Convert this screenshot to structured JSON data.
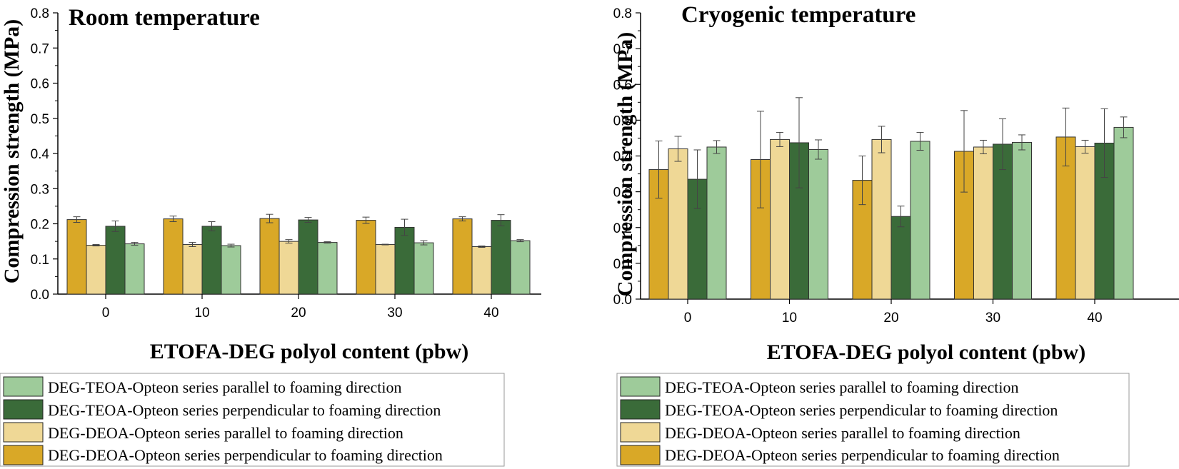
{
  "series_colors": {
    "deoa_perp": "#D9A827",
    "deoa_par": "#EFD896",
    "teoa_perp": "#3A6B39",
    "teoa_par": "#9ECB9A"
  },
  "legend": [
    {
      "key": "teoa_par",
      "label": "DEG-TEOA-Opteon series parallel to foaming direction"
    },
    {
      "key": "teoa_perp",
      "label": "DEG-TEOA-Opteon series perpendicular to foaming direction"
    },
    {
      "key": "deoa_par",
      "label": "DEG-DEOA-Opteon series parallel to foaming direction"
    },
    {
      "key": "deoa_perp",
      "label": "DEG-DEOA-Opteon series perpendicular to foaming direction"
    }
  ],
  "chart_data": [
    {
      "type": "bar",
      "title": "Room temperature",
      "xlabel": "ETOFA-DEG polyol content (pbw)",
      "ylabel": "Compression strength (MPa)",
      "ylim": [
        0,
        0.8
      ],
      "yticks": [
        "0.0",
        "0.1",
        "0.2",
        "0.3",
        "0.4",
        "0.5",
        "0.6",
        "0.7",
        "0.8"
      ],
      "categories": [
        "0",
        "10",
        "20",
        "30",
        "40"
      ],
      "grid": false,
      "legend_position": "bottom",
      "series": [
        {
          "key": "deoa_perp",
          "name": "DEG-DEOA-Opteon series perpendicular to foaming direction",
          "values": [
            0.212,
            0.214,
            0.215,
            0.21,
            0.214
          ],
          "errors": [
            0.008,
            0.008,
            0.012,
            0.009,
            0.006
          ]
        },
        {
          "key": "deoa_par",
          "name": "DEG-DEOA-Opteon series parallel to foaming direction",
          "values": [
            0.139,
            0.141,
            0.15,
            0.141,
            0.135
          ],
          "errors": [
            0.002,
            0.006,
            0.005,
            0.001,
            0.002
          ]
        },
        {
          "key": "teoa_perp",
          "name": "DEG-TEOA-Opteon series perpendicular to foaming direction",
          "values": [
            0.193,
            0.193,
            0.211,
            0.19,
            0.21
          ],
          "errors": [
            0.015,
            0.013,
            0.007,
            0.023,
            0.016
          ]
        },
        {
          "key": "teoa_par",
          "name": "DEG-TEOA-Opteon series parallel to foaming direction",
          "values": [
            0.143,
            0.138,
            0.147,
            0.146,
            0.152
          ],
          "errors": [
            0.004,
            0.004,
            0.002,
            0.006,
            0.003
          ]
        }
      ]
    },
    {
      "type": "bar",
      "title": "Cryogenic temperature",
      "xlabel": "ETOFA-DEG polyol content (pbw)",
      "ylabel": "Compression strength (MPa)",
      "ylim": [
        0,
        0.8
      ],
      "yticks": [
        "0.0",
        "0.1",
        "0.2",
        "0.3",
        "0.4",
        "0.5",
        "0.6",
        "0.7",
        "0.8"
      ],
      "categories": [
        "0",
        "10",
        "20",
        "30",
        "40"
      ],
      "grid": false,
      "legend_position": "bottom",
      "series": [
        {
          "key": "deoa_perp",
          "name": "DEG-DEOA-Opteon series perpendicular to foaming direction",
          "values": [
            0.362,
            0.39,
            0.332,
            0.413,
            0.453
          ],
          "errors": [
            0.08,
            0.135,
            0.068,
            0.114,
            0.081
          ]
        },
        {
          "key": "deoa_par",
          "name": "DEG-DEOA-Opteon series parallel to foaming direction",
          "values": [
            0.42,
            0.446,
            0.446,
            0.425,
            0.426
          ],
          "errors": [
            0.035,
            0.02,
            0.037,
            0.019,
            0.018
          ]
        },
        {
          "key": "teoa_perp",
          "name": "DEG-TEOA-Opteon series perpendicular to foaming direction",
          "values": [
            0.335,
            0.437,
            0.231,
            0.433,
            0.436
          ],
          "errors": [
            0.082,
            0.126,
            0.029,
            0.071,
            0.096
          ]
        },
        {
          "key": "teoa_par",
          "name": "DEG-TEOA-Opteon series parallel to foaming direction",
          "values": [
            0.425,
            0.418,
            0.441,
            0.438,
            0.48
          ],
          "errors": [
            0.018,
            0.027,
            0.025,
            0.021,
            0.029
          ]
        }
      ]
    }
  ]
}
